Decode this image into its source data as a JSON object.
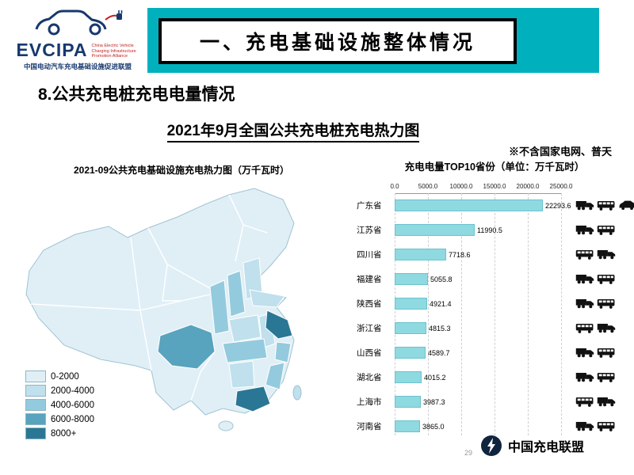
{
  "colors": {
    "teal": "#00b1bd",
    "navy": "#17386e",
    "red": "#c41e1e",
    "bar": "#8fd9e1"
  },
  "logo": {
    "brand": "EVCIPA",
    "english": "China Electric Vehicle Charging Infrastructure Promotion Alliance",
    "chinese": "中国电动汽车充电基础设施促进联盟"
  },
  "banner": {
    "title": "一、充电基础设施整体情况"
  },
  "heading": "8.公共充电桩充电电量情况",
  "subtitle": "2021年9月全国公共充电桩充电热力图",
  "note": "※不含国家电网、普天",
  "map": {
    "title": "2021-09公共充电基础设施充电热力图（万千瓦时）",
    "legend": [
      {
        "label": "0-2000",
        "color": "#e0eff6"
      },
      {
        "label": "2000-4000",
        "color": "#bfe0ec"
      },
      {
        "label": "4000-6000",
        "color": "#94cadd"
      },
      {
        "label": "6000-8000",
        "color": "#58a3bd"
      },
      {
        "label": "8000+",
        "color": "#2a7795"
      }
    ]
  },
  "chart_data": {
    "type": "bar",
    "orientation": "horizontal",
    "title": "充电电量TOP10省份（单位：万千瓦时）",
    "categories": [
      "广东省",
      "江苏省",
      "四川省",
      "福建省",
      "陕西省",
      "浙江省",
      "山西省",
      "湖北省",
      "上海市",
      "河南省"
    ],
    "values": [
      22293.6,
      11990.5,
      7718.6,
      5055.8,
      4921.4,
      4815.3,
      4589.7,
      4015.2,
      3987.3,
      3865.0
    ],
    "labels": [
      "22293.6",
      "11990.5",
      "7718.6",
      "5055.8",
      "4921.4",
      "4815.3",
      "4589.7",
      "4015.2",
      "3987.3",
      "3865.0"
    ],
    "x_ticks": [
      "0.0",
      "5000.0",
      "10000.0",
      "15000.0",
      "20000.0",
      "25000.0"
    ],
    "xlim": [
      0,
      25000
    ],
    "xlabel": "",
    "ylabel": "",
    "grid": true,
    "legend_position": "none"
  },
  "vehicles": {
    "rows": [
      [
        "truck",
        "bus",
        "car"
      ],
      [
        "truck",
        "bus"
      ],
      [
        "bus",
        "truck"
      ],
      [
        "truck",
        "bus"
      ],
      [
        "truck",
        "bus"
      ],
      [
        "bus",
        "truck"
      ],
      [
        "truck",
        "bus"
      ],
      [
        "truck",
        "bus"
      ],
      [
        "bus",
        "truck"
      ],
      [
        "truck",
        "bus"
      ]
    ]
  },
  "footer": {
    "alliance": "中国充电联盟",
    "page": "29"
  }
}
